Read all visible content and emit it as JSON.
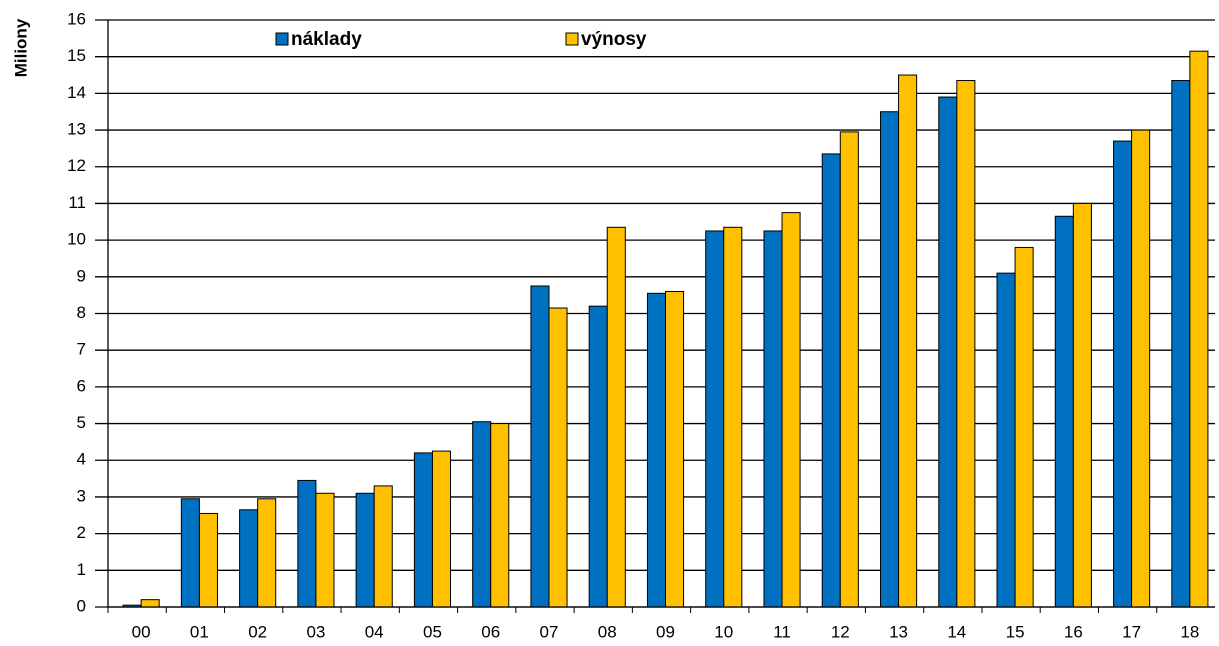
{
  "chart_data": {
    "type": "bar",
    "y_label": "Miliony",
    "categories": [
      "00",
      "01",
      "02",
      "03",
      "04",
      "05",
      "06",
      "07",
      "08",
      "09",
      "10",
      "11",
      "12",
      "13",
      "14",
      "15",
      "16",
      "17",
      "18"
    ],
    "series": [
      {
        "name": "náklady",
        "color": "#0070c0",
        "values": [
          0.05,
          2.95,
          2.65,
          3.45,
          3.1,
          4.2,
          5.05,
          8.75,
          8.2,
          8.55,
          10.25,
          10.25,
          12.35,
          13.5,
          13.9,
          9.1,
          10.65,
          12.7,
          14.35
        ]
      },
      {
        "name": "výnosy",
        "color": "#ffc000",
        "values": [
          0.2,
          2.55,
          2.95,
          3.1,
          3.3,
          4.25,
          5.0,
          8.15,
          10.35,
          8.6,
          10.35,
          10.75,
          12.95,
          14.5,
          14.35,
          9.8,
          11.0,
          13.0,
          15.15
        ]
      }
    ],
    "ylim": [
      0,
      16
    ],
    "yticks": [
      0,
      1,
      2,
      3,
      4,
      5,
      6,
      7,
      8,
      9,
      10,
      11,
      12,
      13,
      14,
      15,
      16
    ],
    "grid": true
  }
}
